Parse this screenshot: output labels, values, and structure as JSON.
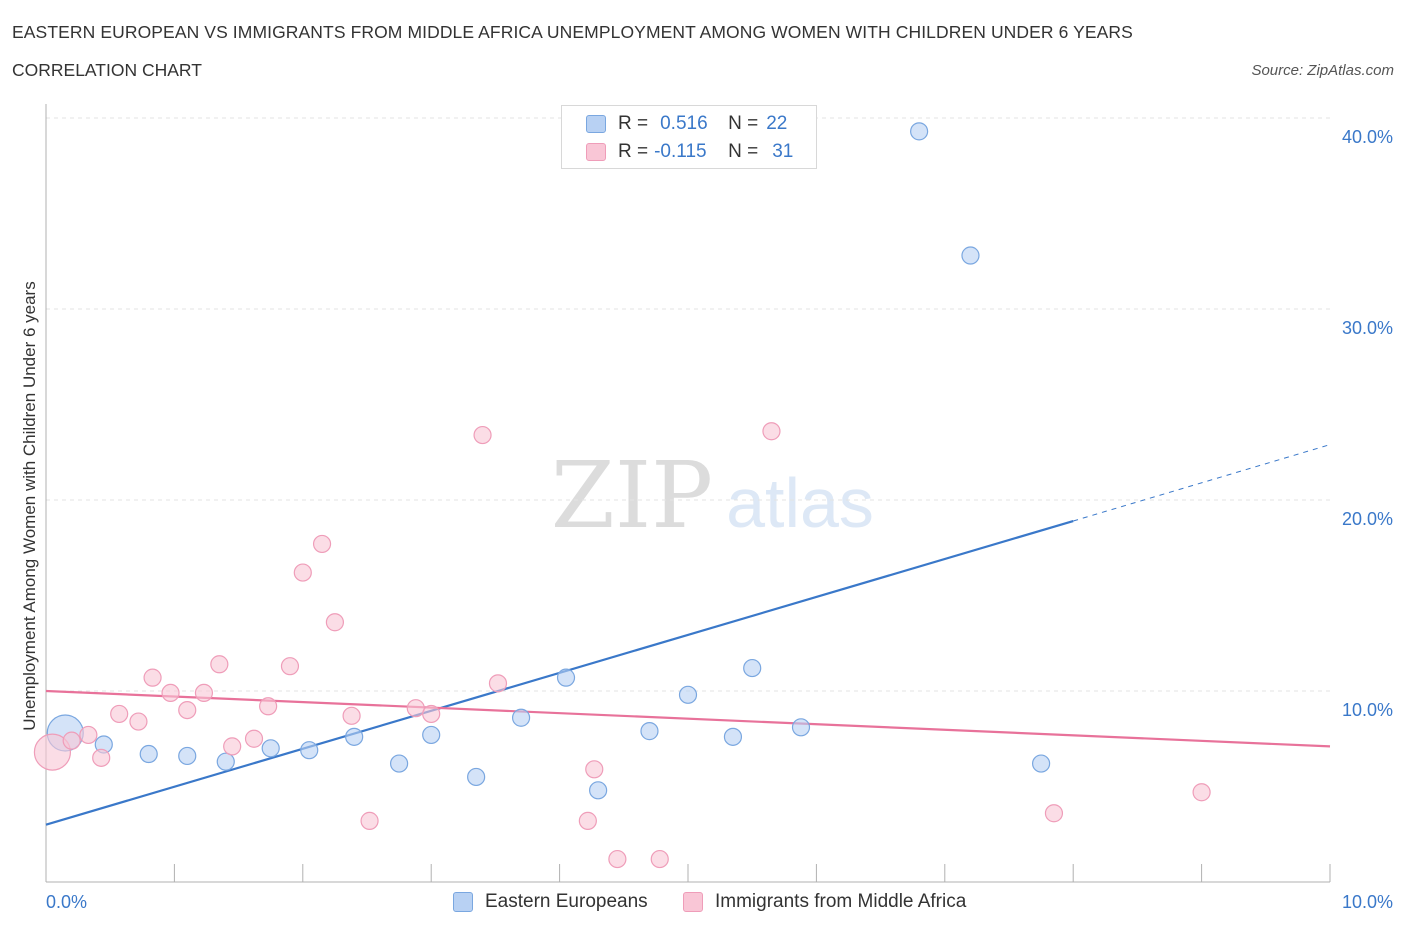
{
  "title": "EASTERN EUROPEAN VS IMMIGRANTS FROM MIDDLE AFRICA UNEMPLOYMENT AMONG WOMEN WITH CHILDREN UNDER 6 YEARS",
  "subtitle": "CORRELATION CHART",
  "source": "Source: ZipAtlas.com",
  "watermark": {
    "zip": "ZIP",
    "atlas": "atlas"
  },
  "legend_top": {
    "rows": [
      {
        "r_label": "R =",
        "r_value": "0.516",
        "n_label": "N =",
        "n_value": "22"
      },
      {
        "r_label": "R =",
        "r_value": "-0.115",
        "n_label": "N =",
        "n_value": "31"
      }
    ]
  },
  "legend_bottom": {
    "items": [
      {
        "label": "Eastern Europeans"
      },
      {
        "label": "Immigrants from Middle Africa"
      }
    ]
  },
  "colors": {
    "blue": "#3a78c9",
    "blue_fill": "#b8d1f3",
    "blue_stroke": "#7aa7e0",
    "pink": "#e8729a",
    "pink_fill": "#f9c6d6",
    "pink_stroke": "#ef9db9",
    "grid": "#e3e3e3",
    "axis_text": "#3a78c9"
  },
  "chart_data": {
    "type": "scatter",
    "title": "EASTERN EUROPEAN VS IMMIGRANTS FROM MIDDLE AFRICA UNEMPLOYMENT AMONG WOMEN WITH CHILDREN UNDER 6 YEARS",
    "xlabel": "",
    "ylabel": "Unemployment Among Women with Children Under 6 years",
    "xlim": [
      0,
      10
    ],
    "ylim": [
      0,
      40
    ],
    "x_tick_labels": [
      "0.0%",
      "10.0%"
    ],
    "y_ticks": [
      10,
      20,
      30,
      40
    ],
    "y_tick_labels": [
      "10.0%",
      "20.0%",
      "30.0%",
      "40.0%"
    ],
    "legend": "bottom-center",
    "series": [
      {
        "name": "Eastern Europeans",
        "color": "blue",
        "r": 0.516,
        "n": 22,
        "points": [
          {
            "x": 0.15,
            "y": 7.8,
            "big": true
          },
          {
            "x": 0.45,
            "y": 7.2
          },
          {
            "x": 0.8,
            "y": 6.7
          },
          {
            "x": 1.1,
            "y": 6.6
          },
          {
            "x": 1.4,
            "y": 6.3
          },
          {
            "x": 1.75,
            "y": 7.0
          },
          {
            "x": 2.05,
            "y": 6.9
          },
          {
            "x": 2.4,
            "y": 7.6
          },
          {
            "x": 2.75,
            "y": 6.2
          },
          {
            "x": 3.0,
            "y": 7.7
          },
          {
            "x": 3.35,
            "y": 5.5
          },
          {
            "x": 3.7,
            "y": 8.6
          },
          {
            "x": 4.05,
            "y": 10.7
          },
          {
            "x": 4.3,
            "y": 4.8
          },
          {
            "x": 4.7,
            "y": 7.9
          },
          {
            "x": 5.0,
            "y": 9.8
          },
          {
            "x": 5.35,
            "y": 7.6
          },
          {
            "x": 5.5,
            "y": 11.2
          },
          {
            "x": 5.88,
            "y": 8.1
          },
          {
            "x": 6.8,
            "y": 39.3
          },
          {
            "x": 7.2,
            "y": 32.8
          },
          {
            "x": 7.75,
            "y": 6.2
          }
        ],
        "trend": {
          "x0": 0,
          "y0": 3.0,
          "x1": 8.0,
          "y1": 18.9,
          "dash_to_x": 10.0,
          "dash_to_y": 22.9
        }
      },
      {
        "name": "Immigrants from Middle Africa",
        "color": "pink",
        "r": -0.115,
        "n": 31,
        "points": [
          {
            "x": 0.05,
            "y": 6.8,
            "big": true
          },
          {
            "x": 0.2,
            "y": 7.4
          },
          {
            "x": 0.33,
            "y": 7.7
          },
          {
            "x": 0.43,
            "y": 6.5
          },
          {
            "x": 0.57,
            "y": 8.8
          },
          {
            "x": 0.72,
            "y": 8.4
          },
          {
            "x": 0.83,
            "y": 10.7
          },
          {
            "x": 0.97,
            "y": 9.9
          },
          {
            "x": 1.1,
            "y": 9.0
          },
          {
            "x": 1.23,
            "y": 9.9
          },
          {
            "x": 1.35,
            "y": 11.4
          },
          {
            "x": 1.45,
            "y": 7.1
          },
          {
            "x": 1.62,
            "y": 7.5
          },
          {
            "x": 1.73,
            "y": 9.2
          },
          {
            "x": 1.9,
            "y": 11.3
          },
          {
            "x": 2.0,
            "y": 16.2
          },
          {
            "x": 2.15,
            "y": 17.7
          },
          {
            "x": 2.25,
            "y": 13.6
          },
          {
            "x": 2.38,
            "y": 8.7
          },
          {
            "x": 2.52,
            "y": 3.2
          },
          {
            "x": 2.88,
            "y": 9.1
          },
          {
            "x": 3.0,
            "y": 8.8
          },
          {
            "x": 3.4,
            "y": 23.4
          },
          {
            "x": 3.52,
            "y": 10.4
          },
          {
            "x": 4.22,
            "y": 3.2
          },
          {
            "x": 4.27,
            "y": 5.9
          },
          {
            "x": 4.45,
            "y": 1.2
          },
          {
            "x": 4.78,
            "y": 1.2
          },
          {
            "x": 5.65,
            "y": 23.6
          },
          {
            "x": 7.85,
            "y": 3.6
          },
          {
            "x": 9.0,
            "y": 4.7
          }
        ],
        "trend": {
          "x0": 0,
          "y0": 10.0,
          "x1": 10.0,
          "y1": 7.1
        }
      }
    ]
  }
}
